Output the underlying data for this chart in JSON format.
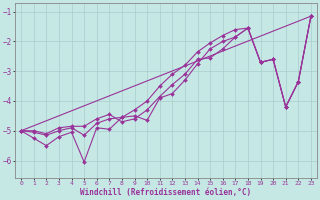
{
  "xlabel": "Windchill (Refroidissement éolien,°C)",
  "background_color": "#c5e8e5",
  "grid_color": "#a8ceca",
  "line_color": "#993399",
  "xlim": [
    -0.5,
    23.5
  ],
  "ylim": [
    -6.6,
    -0.7
  ],
  "xticks": [
    0,
    1,
    2,
    3,
    4,
    5,
    6,
    7,
    8,
    9,
    10,
    11,
    12,
    13,
    14,
    15,
    16,
    17,
    18,
    19,
    20,
    21,
    22,
    23
  ],
  "yticks": [
    -6,
    -5,
    -4,
    -3,
    -2,
    -1
  ],
  "lines": [
    {
      "x": [
        0,
        1,
        2,
        3,
        4,
        5,
        6,
        7,
        8,
        9,
        10,
        11,
        12,
        13,
        14,
        15,
        16,
        17,
        18,
        19,
        20,
        21,
        22,
        23
      ],
      "y": [
        -5.0,
        -5.0,
        -5.1,
        -4.9,
        -4.85,
        -4.85,
        -4.6,
        -4.45,
        -4.7,
        -4.6,
        -4.3,
        -3.85,
        -3.45,
        -3.1,
        -2.6,
        -2.55,
        -2.25,
        -1.85,
        -1.55,
        -2.7,
        -2.6,
        -4.2,
        -3.35,
        -1.15
      ]
    },
    {
      "x": [
        0,
        1,
        2,
        3,
        4,
        5,
        6,
        7,
        8,
        9,
        10,
        11,
        12,
        13,
        14,
        15,
        16,
        17,
        18,
        19,
        20,
        21,
        22,
        23
      ],
      "y": [
        -5.0,
        -5.25,
        -5.5,
        -5.2,
        -5.05,
        -6.05,
        -4.9,
        -4.95,
        -4.55,
        -4.5,
        -4.65,
        -3.9,
        -3.75,
        -3.3,
        -2.75,
        -2.25,
        -2.0,
        -1.85,
        -1.55,
        -2.7,
        -2.6,
        -4.2,
        -3.35,
        -1.15
      ]
    },
    {
      "x": [
        0,
        1,
        2,
        3,
        4,
        5,
        6,
        7,
        8,
        9,
        10,
        11,
        12,
        13,
        14,
        15,
        16,
        17,
        18,
        19,
        20,
        21,
        22,
        23
      ],
      "y": [
        -5.0,
        -5.05,
        -5.15,
        -5.0,
        -4.9,
        -5.15,
        -4.75,
        -4.6,
        -4.55,
        -4.3,
        -4.0,
        -3.5,
        -3.1,
        -2.8,
        -2.35,
        -2.05,
        -1.8,
        -1.6,
        -1.55,
        -2.7,
        -2.6,
        -4.2,
        -3.35,
        -1.15
      ]
    },
    {
      "x": [
        0,
        23
      ],
      "y": [
        -5.0,
        -1.15
      ]
    }
  ]
}
